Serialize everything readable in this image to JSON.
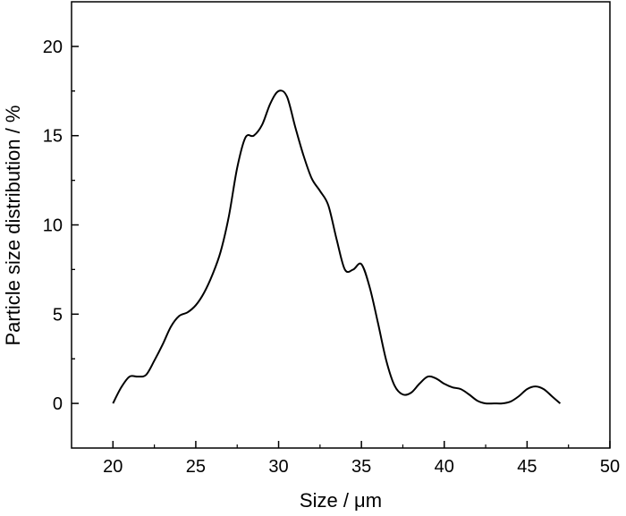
{
  "chart_data": {
    "type": "line",
    "title": "",
    "xlabel": "Size / μm",
    "ylabel": "Particle size distribution / %",
    "xlim": [
      17.5,
      50
    ],
    "ylim": [
      -2.5,
      22.5
    ],
    "xticks": [
      20,
      25,
      30,
      35,
      40,
      45,
      50
    ],
    "yticks": [
      0,
      5,
      10,
      15,
      20
    ],
    "grid": false,
    "legend": "none",
    "line_color": "#000000",
    "series": [
      {
        "x": [
          20,
          20.5,
          21,
          21.5,
          22,
          22.5,
          23,
          23.5,
          24,
          24.5,
          25,
          25.5,
          26,
          26.5,
          27,
          27.5,
          28,
          28.5,
          29,
          29.5,
          30,
          30.5,
          31,
          31.5,
          32,
          32.5,
          33,
          33.5,
          34,
          34.5,
          35,
          35.5,
          36,
          36.5,
          37,
          37.5,
          38,
          38.5,
          39,
          39.5,
          40,
          40.5,
          41,
          41.5,
          42,
          42.5,
          43,
          43.5,
          44,
          44.5,
          45,
          45.5,
          46,
          46.5,
          47
        ],
        "values": [
          0,
          0.9,
          1.5,
          1.5,
          1.6,
          2.4,
          3.3,
          4.3,
          4.9,
          5.1,
          5.5,
          6.2,
          7.2,
          8.5,
          10.5,
          13.2,
          14.9,
          15.0,
          15.6,
          16.8,
          17.5,
          17.2,
          15.5,
          13.9,
          12.6,
          11.9,
          11.1,
          9.2,
          7.5,
          7.5,
          7.8,
          6.5,
          4.5,
          2.4,
          1.0,
          0.5,
          0.6,
          1.1,
          1.5,
          1.4,
          1.1,
          0.9,
          0.8,
          0.5,
          0.15,
          0.0,
          0.0,
          0.0,
          0.1,
          0.4,
          0.8,
          0.95,
          0.8,
          0.4,
          0.0
        ]
      }
    ]
  }
}
